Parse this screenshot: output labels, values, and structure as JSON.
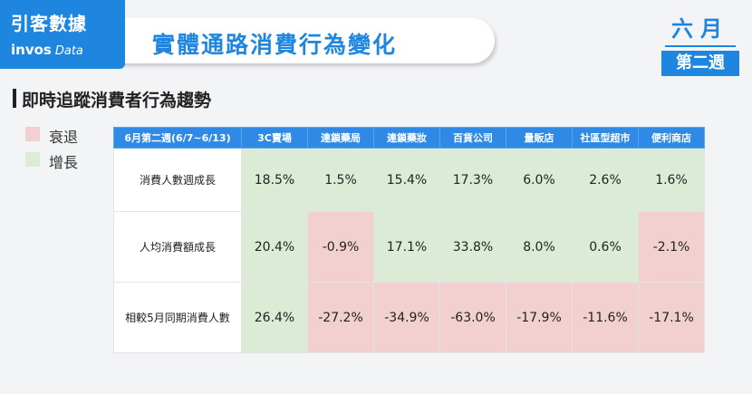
{
  "header": {
    "brand": "引客數據",
    "brand_en": "invos",
    "brand_en_sub": "Data",
    "title": "實體通路消費行為變化",
    "month": "六月",
    "week": "第二週"
  },
  "subtitle": "即時追蹤消費者行為趨勢",
  "legend": [
    {
      "label": "衰退",
      "color": "#f2d0d0"
    },
    {
      "label": "增長",
      "color": "#dcebd5"
    }
  ],
  "table": {
    "header": [
      "6月第二週(6/7~6/13)",
      "3C賣場",
      "連鎖藥局",
      "連鎖藥妝",
      "百貨公司",
      "量販店",
      "社區型超市",
      "便利商店"
    ],
    "rows": [
      [
        "消費人數週成長",
        "18.5%",
        "1.5%",
        "15.4%",
        "17.3%",
        "6.0%",
        "2.6%",
        "1.6%"
      ],
      [
        "人均消費額成長",
        "20.4%",
        "-0.9%",
        "17.1%",
        "33.8%",
        "8.0%",
        "0.6%",
        "-2.1%"
      ],
      [
        "相較5月同期消費人數",
        "26.4%",
        "-27.2%",
        "-34.9%",
        "-63.0%",
        "-17.9%",
        "-11.6%",
        "-17.1%"
      ]
    ]
  }
}
